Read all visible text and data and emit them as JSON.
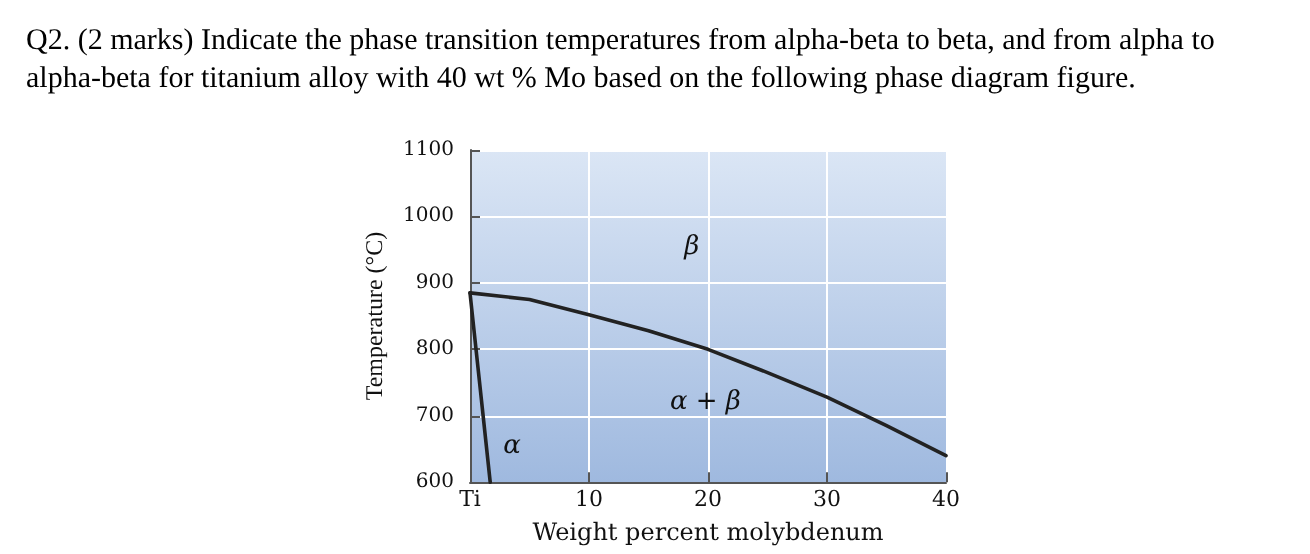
{
  "chart_data": {
    "type": "line",
    "title": "Q2. (2 marks) Indicate the phase transition temperatures from alpha-beta to beta, and from alpha to alpha-beta for titanium alloy with 40 wt % Mo based on the following phase diagram figure.",
    "xlabel": "Weight percent molybdenum",
    "ylabel": "Temperature (°C)",
    "series": [
      {
        "color": "#222222",
        "x": [
          0,
          5,
          10,
          15,
          20,
          25,
          30,
          35,
          40
        ],
        "values": [
          885,
          875,
          852,
          828,
          800,
          765,
          728,
          685,
          640
        ]
      },
      {
        "color": "#222222",
        "x": [
          0,
          1.7
        ],
        "values": [
          885,
          600
        ]
      }
    ],
    "xlim": [
      0,
      40
    ],
    "xticks": [
      {
        "value": 0,
        "label": "Ti"
      },
      10,
      20,
      30,
      40
    ],
    "ylim": [
      600,
      1100
    ],
    "yticks": [
      600,
      700,
      800,
      900,
      1000,
      1100
    ],
    "grid": true,
    "marker": "none",
    "line_style": "solid",
    "annotations": [
      "β",
      "α + β",
      "α"
    ]
  }
}
